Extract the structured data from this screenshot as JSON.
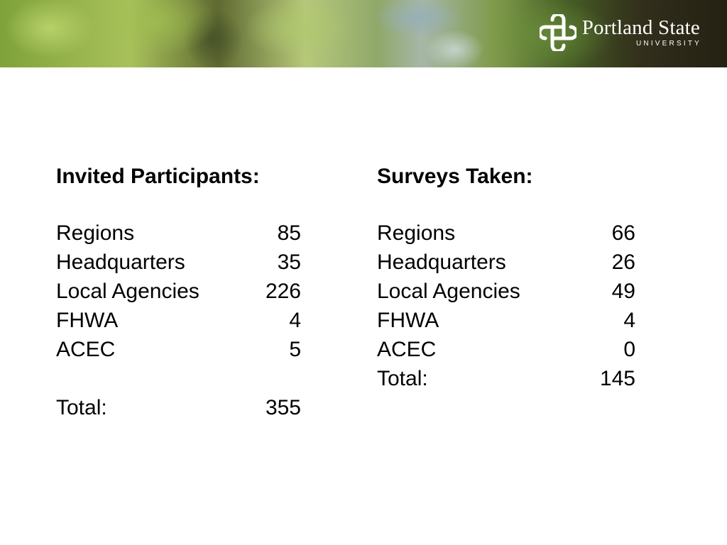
{
  "header": {
    "logo_name": "Portland State",
    "logo_sub": "UNIVERSITY",
    "logo_icon": "psu-knot-icon"
  },
  "invited": {
    "heading": "Invited Participants:",
    "rows": [
      {
        "label": "Regions",
        "value": "85"
      },
      {
        "label": "Headquarters",
        "value": "35"
      },
      {
        "label": "Local Agencies",
        "value": "226"
      },
      {
        "label": "FHWA",
        "value": "4"
      },
      {
        "label": "ACEC",
        "value": "5"
      }
    ],
    "total_label": "Total:",
    "total_value": "355"
  },
  "surveys": {
    "heading": "Surveys Taken:",
    "rows": [
      {
        "label": "Regions",
        "value": "66"
      },
      {
        "label": "Headquarters",
        "value": "26"
      },
      {
        "label": "Local Agencies",
        "value": "49"
      },
      {
        "label": "FHWA",
        "value": "4"
      },
      {
        "label": "ACEC",
        "value": "0"
      }
    ],
    "total_label": "Total:",
    "total_value": "145"
  }
}
